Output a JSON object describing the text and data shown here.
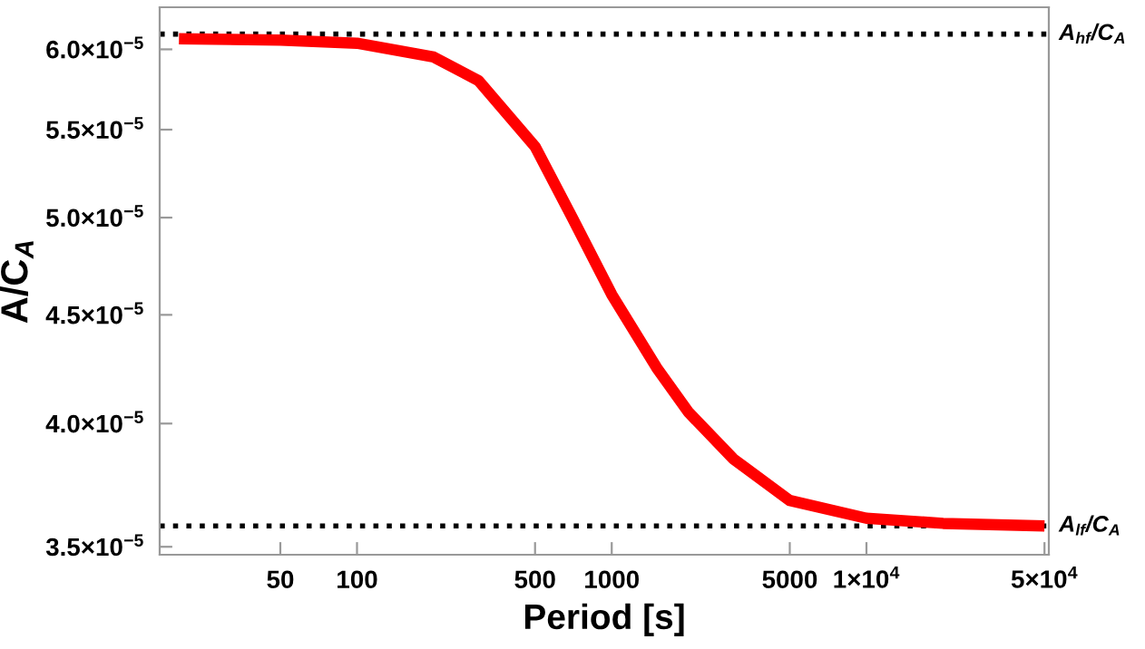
{
  "chart_data": {
    "type": "line",
    "xlabel": "Period [s]",
    "ylabel": "A/C$_{A}$",
    "log": "xy",
    "x": [
      20,
      50,
      100,
      200,
      300,
      500,
      700,
      1000,
      1500,
      2000,
      3000,
      5000,
      10000,
      20000,
      50000
    ],
    "series": [
      {
        "color": "#ff0000",
        "values": [
          6.07e-05,
          6.06e-05,
          6.04e-05,
          5.95e-05,
          5.8e-05,
          5.4e-05,
          5e-05,
          4.6e-05,
          4.25e-05,
          4.05e-05,
          3.85e-05,
          3.68e-05,
          3.61e-05,
          3.59e-05,
          3.58e-05
        ]
      }
    ],
    "xlim": [
      16.8,
      52000
    ],
    "ylim": [
      3.47e-05,
      6.28e-05
    ],
    "xticks": [
      50,
      100,
      500,
      1000,
      5000,
      {
        "value": 10000,
        "label": "1×10$^{4}$"
      },
      {
        "value": 50000,
        "label": "5×10$^{4}$"
      }
    ],
    "yticks": [
      {
        "value": 3.5e-05,
        "label": "3.5×10$^{−5}$"
      },
      {
        "value": 4e-05,
        "label": "4.0×10$^{−5}$"
      },
      {
        "value": 4.5e-05,
        "label": "4.5×10$^{−5}$"
      },
      {
        "value": 5e-05,
        "label": "5.0×10$^{−5}$"
      },
      {
        "value": 5.5e-05,
        "label": "5.5×10$^{−5}$"
      },
      {
        "value": 6e-05,
        "label": "6.0×10$^{−5}$"
      }
    ],
    "ref_lines": [
      {
        "axis": "y",
        "value": 6.1e-05,
        "label": "A$_{hf}$/C$_{A}$",
        "color": "#000000",
        "line_style": "dotted"
      },
      {
        "axis": "y",
        "value": 3.58e-05,
        "label": "A$_{lf}$/C$_{A}$",
        "color": "#000000",
        "line_style": "dotted"
      }
    ],
    "grid": false,
    "legend": false,
    "marker": "none",
    "line_style": "solid"
  }
}
